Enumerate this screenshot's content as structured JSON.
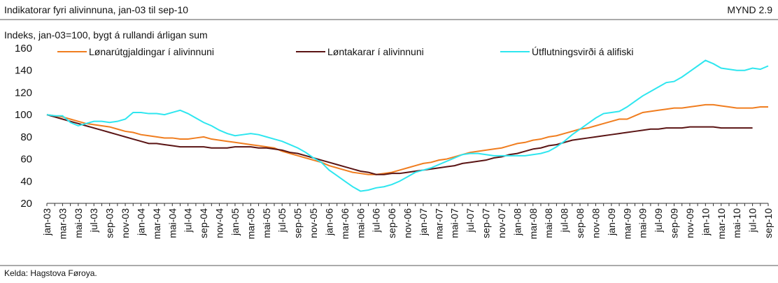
{
  "chart_data": {
    "type": "line",
    "title": "Indikatorar fyri alivinnuna, jan-03 til sep-10",
    "figure_label": "MYND 2.9",
    "subtitle": "Indeks, jan-03=100, bygt á rullandi árligan sum",
    "source": "Kelda: Hagstova Føroya.",
    "categories": [
      "jan-03",
      null,
      "mar-03",
      null,
      "mai-03",
      null,
      "jul-03",
      null,
      "sep-03",
      null,
      "nov-03",
      null,
      "jan-04",
      null,
      "mar-04",
      null,
      "mai-04",
      null,
      "jul-04",
      null,
      "sep-04",
      null,
      "nov-04",
      null,
      "jan-05",
      null,
      "mar-05",
      null,
      "mai-05",
      null,
      "jul-05",
      null,
      "sep-05",
      null,
      "nov-05",
      null,
      "jan-06",
      null,
      "mar-06",
      null,
      "mai-06",
      null,
      "jul-06",
      null,
      "sep-06",
      null,
      "nov-06",
      null,
      "jan-07",
      null,
      "mar-07",
      null,
      "mai-07",
      null,
      "jul-07",
      null,
      "sep-07",
      null,
      "nov-07",
      null,
      "jan-08",
      null,
      "mar-08",
      null,
      "mai-08",
      null,
      "jul-08",
      null,
      "sep-08",
      null,
      "nov-08",
      null,
      "jan-09",
      null,
      "mar-09",
      null,
      "mai-09",
      null,
      "jul-09",
      null,
      "sep-09",
      null,
      "nov-09",
      null,
      "jan-10",
      null,
      "mar-10",
      null,
      "mai-10",
      null,
      "jul-10",
      null,
      "sep-10"
    ],
    "series": [
      {
        "name": "Lønarútgjaldingar í alivinnuni",
        "color": "#f07d1f",
        "values": [
          100,
          99,
          98,
          96,
          94,
          92,
          91,
          90,
          89,
          87,
          85,
          84,
          82,
          81,
          80,
          79,
          79,
          78,
          78,
          79,
          80,
          78,
          77,
          76,
          75,
          74,
          73,
          72,
          71,
          70,
          67,
          65,
          63,
          61,
          59,
          57,
          54,
          52,
          50,
          48,
          47,
          46,
          46,
          47,
          48,
          50,
          52,
          54,
          56,
          57,
          59,
          60,
          62,
          64,
          66,
          67,
          68,
          69,
          70,
          72,
          74,
          75,
          77,
          78,
          80,
          81,
          83,
          85,
          87,
          88,
          90,
          92,
          94,
          96,
          96,
          99,
          102,
          103,
          104,
          105,
          106,
          106,
          107,
          108,
          109,
          109,
          108,
          107,
          106,
          106,
          106,
          107,
          107
        ]
      },
      {
        "name": "Løntakarar í alivinnuni",
        "color": "#5a1414",
        "values": [
          100,
          98,
          96,
          94,
          92,
          90,
          88,
          86,
          84,
          82,
          80,
          78,
          76,
          74,
          74,
          73,
          72,
          71,
          71,
          71,
          71,
          70,
          70,
          70,
          71,
          71,
          71,
          70,
          70,
          69,
          68,
          66,
          65,
          63,
          61,
          59,
          57,
          55,
          53,
          51,
          49,
          48,
          46,
          46,
          47,
          47,
          48,
          49,
          50,
          51,
          52,
          53,
          54,
          56,
          57,
          58,
          59,
          61,
          62,
          64,
          65,
          67,
          69,
          70,
          72,
          73,
          75,
          77,
          78,
          79,
          80,
          81,
          82,
          83,
          84,
          85,
          86,
          87,
          87,
          88,
          88,
          88,
          89,
          89,
          89,
          89,
          88,
          88,
          88,
          88,
          88,
          null,
          null
        ]
      },
      {
        "name": "Útflutningsvirði á alifiski",
        "color": "#2ee6ef",
        "values": [
          100,
          99,
          99,
          93,
          90,
          92,
          94,
          94,
          93,
          94,
          96,
          102,
          102,
          101,
          101,
          100,
          102,
          104,
          101,
          97,
          93,
          90,
          86,
          83,
          81,
          82,
          83,
          82,
          80,
          78,
          76,
          73,
          70,
          66,
          61,
          57,
          50,
          45,
          40,
          35,
          31,
          32,
          34,
          35,
          37,
          40,
          44,
          48,
          50,
          52,
          55,
          58,
          61,
          64,
          65,
          65,
          64,
          63,
          63,
          63,
          63,
          63,
          64,
          65,
          67,
          71,
          76,
          82,
          87,
          92,
          97,
          101,
          102,
          103,
          107,
          112,
          117,
          121,
          125,
          129,
          130,
          134,
          139,
          144,
          149,
          146,
          142,
          141,
          140,
          140,
          142,
          141,
          144
        ]
      }
    ],
    "ylim": [
      20,
      160
    ],
    "yticks": [
      20,
      40,
      60,
      80,
      100,
      120,
      140,
      160
    ]
  }
}
